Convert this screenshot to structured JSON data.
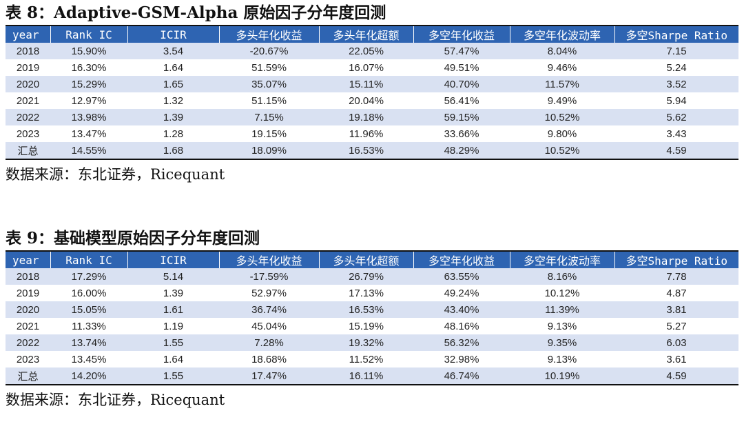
{
  "table1": {
    "title": "表 8：Adaptive-GSM-Alpha 原始因子分年度回测",
    "headers": [
      "year",
      "Rank IC",
      "ICIR",
      "多头年化收益",
      "多头年化超额",
      "多空年化收益",
      "多空年化波动率",
      "多空Sharpe Ratio"
    ],
    "rows": [
      [
        "2018",
        "15.90%",
        "3.54",
        "-20.67%",
        "22.05%",
        "57.47%",
        "8.04%",
        "7.15"
      ],
      [
        "2019",
        "16.30%",
        "1.64",
        "51.59%",
        "16.07%",
        "49.51%",
        "9.46%",
        "5.24"
      ],
      [
        "2020",
        "15.29%",
        "1.65",
        "35.07%",
        "15.11%",
        "40.70%",
        "11.57%",
        "3.52"
      ],
      [
        "2021",
        "12.97%",
        "1.32",
        "51.15%",
        "20.04%",
        "56.41%",
        "9.49%",
        "5.94"
      ],
      [
        "2022",
        "13.98%",
        "1.39",
        "7.15%",
        "19.18%",
        "59.15%",
        "10.52%",
        "5.62"
      ],
      [
        "2023",
        "13.47%",
        "1.28",
        "19.15%",
        "11.96%",
        "33.66%",
        "9.80%",
        "3.43"
      ],
      [
        "汇总",
        "14.55%",
        "1.68",
        "18.09%",
        "16.53%",
        "48.29%",
        "10.52%",
        "4.59"
      ]
    ],
    "source": "数据来源：东北证券，Ricequant"
  },
  "table2": {
    "title": "表 9：基础模型原始因子分年度回测",
    "headers": [
      "year",
      "Rank IC",
      "ICIR",
      "多头年化收益",
      "多头年化超额",
      "多空年化收益",
      "多空年化波动率",
      "多空Sharpe Ratio"
    ],
    "rows": [
      [
        "2018",
        "17.29%",
        "5.14",
        "-17.59%",
        "26.79%",
        "63.55%",
        "8.16%",
        "7.78"
      ],
      [
        "2019",
        "16.00%",
        "1.39",
        "52.97%",
        "17.13%",
        "49.24%",
        "10.12%",
        "4.87"
      ],
      [
        "2020",
        "15.05%",
        "1.61",
        "36.74%",
        "16.53%",
        "43.40%",
        "11.39%",
        "3.81"
      ],
      [
        "2021",
        "11.33%",
        "1.19",
        "45.04%",
        "15.19%",
        "48.16%",
        "9.13%",
        "5.27"
      ],
      [
        "2022",
        "13.74%",
        "1.55",
        "7.28%",
        "19.32%",
        "56.32%",
        "9.35%",
        "6.03"
      ],
      [
        "2023",
        "13.45%",
        "1.64",
        "18.68%",
        "11.52%",
        "32.98%",
        "9.13%",
        "3.61"
      ],
      [
        "汇总",
        "14.20%",
        "1.55",
        "17.47%",
        "16.11%",
        "46.74%",
        "10.19%",
        "4.59"
      ]
    ],
    "source": "数据来源：东北证券，Ricequant"
  }
}
